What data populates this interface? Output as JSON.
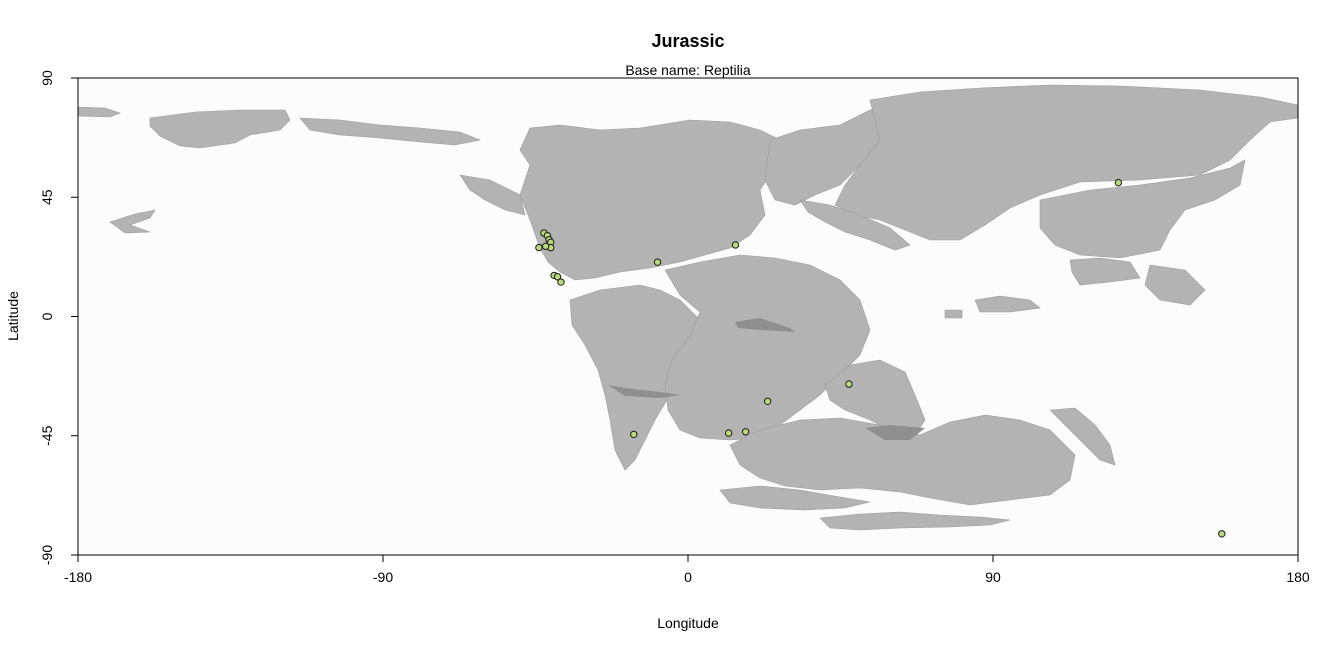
{
  "chart_data": {
    "type": "scatter",
    "title": "Jurassic",
    "subtitle": "Base name: Reptilia",
    "xlabel": "Longitude",
    "ylabel": "Latitude",
    "xlim": [
      -180,
      180
    ],
    "ylim": [
      -90,
      90
    ],
    "xticks": [
      -180,
      -90,
      0,
      90,
      180
    ],
    "yticks": [
      -90,
      -45,
      0,
      45,
      90
    ],
    "grid": false,
    "colors": {
      "ocean": "#fcfcfc",
      "land": "#b3b3b3",
      "point_fill": "#b9d97a",
      "point_stroke": "#1a1a1a"
    },
    "points": [
      {
        "lon": -42.5,
        "lat": 31.5
      },
      {
        "lon": -41.5,
        "lat": 30.5
      },
      {
        "lon": -41.0,
        "lat": 29.0
      },
      {
        "lon": -40.5,
        "lat": 28.0
      },
      {
        "lon": -40.5,
        "lat": 26.0
      },
      {
        "lon": -42.0,
        "lat": 26.5
      },
      {
        "lon": -44.0,
        "lat": 26.0
      },
      {
        "lon": -39.5,
        "lat": 15.5
      },
      {
        "lon": -38.5,
        "lat": 15.0
      },
      {
        "lon": -37.5,
        "lat": 13.0
      },
      {
        "lon": -9.0,
        "lat": 20.5
      },
      {
        "lon": 14.0,
        "lat": 27.0
      },
      {
        "lon": 127.0,
        "lat": 50.5
      },
      {
        "lon": 47.5,
        "lat": -25.5
      },
      {
        "lon": 23.5,
        "lat": -32.0
      },
      {
        "lon": 17.0,
        "lat": -43.5
      },
      {
        "lon": 12.0,
        "lat": -44.0
      },
      {
        "lon": -16.0,
        "lat": -44.5
      },
      {
        "lon": 157.5,
        "lat": -82.0
      }
    ]
  }
}
